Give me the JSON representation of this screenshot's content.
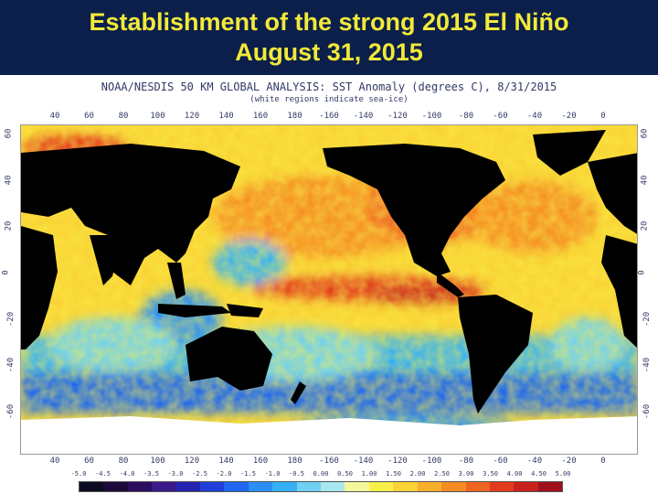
{
  "header": {
    "line1": "Establishment of the strong 2015 El Niño",
    "line2": "August 31, 2015"
  },
  "chart": {
    "title": "NOAA/NESDIS 50 KM GLOBAL ANALYSIS: SST Anomaly (degrees C), 8/31/2015",
    "subtitle": "(white regions indicate sea-ice)"
  },
  "axes": {
    "longitude_ticks": [
      "40",
      "60",
      "80",
      "100",
      "120",
      "140",
      "160",
      "180",
      "-160",
      "-140",
      "-120",
      "-100",
      "-80",
      "-60",
      "-40",
      "-20",
      "0"
    ],
    "latitude_ticks": [
      "60",
      "40",
      "20",
      "0",
      "-20",
      "-40",
      "-60"
    ]
  },
  "legend": {
    "labels": [
      "-5.0",
      "-4.5",
      "-4.0",
      "-3.5",
      "-3.0",
      "-2.5",
      "-2.0",
      "-1.5",
      "-1.0",
      "-0.5",
      "0.00",
      "0.50",
      "1.00",
      "1.50",
      "2.00",
      "2.50",
      "3.00",
      "3.50",
      "4.00",
      "4.50",
      "5.00"
    ],
    "colors": [
      "#0b0b20",
      "#1c0a3a",
      "#2b0f5e",
      "#3a1a8a",
      "#2424b0",
      "#1f3fd8",
      "#1f66f0",
      "#2a8ef5",
      "#36b0f5",
      "#6fd0f2",
      "#a8e6f0",
      "#f4f79c",
      "#f9ef4a",
      "#f9d234",
      "#f8b02a",
      "#f58c22",
      "#ef6420",
      "#e23a1e",
      "#c8201c",
      "#a0101a"
    ]
  },
  "palette": {
    "land": "#000000",
    "sea_ice": "#ffffff",
    "ocean_warm": "#f8b02a",
    "ocean_hot": "#e23a1e",
    "ocean_neutral": "#f9ef4a",
    "ocean_cool": "#36b0f5",
    "ocean_cold": "#1f66f0"
  }
}
